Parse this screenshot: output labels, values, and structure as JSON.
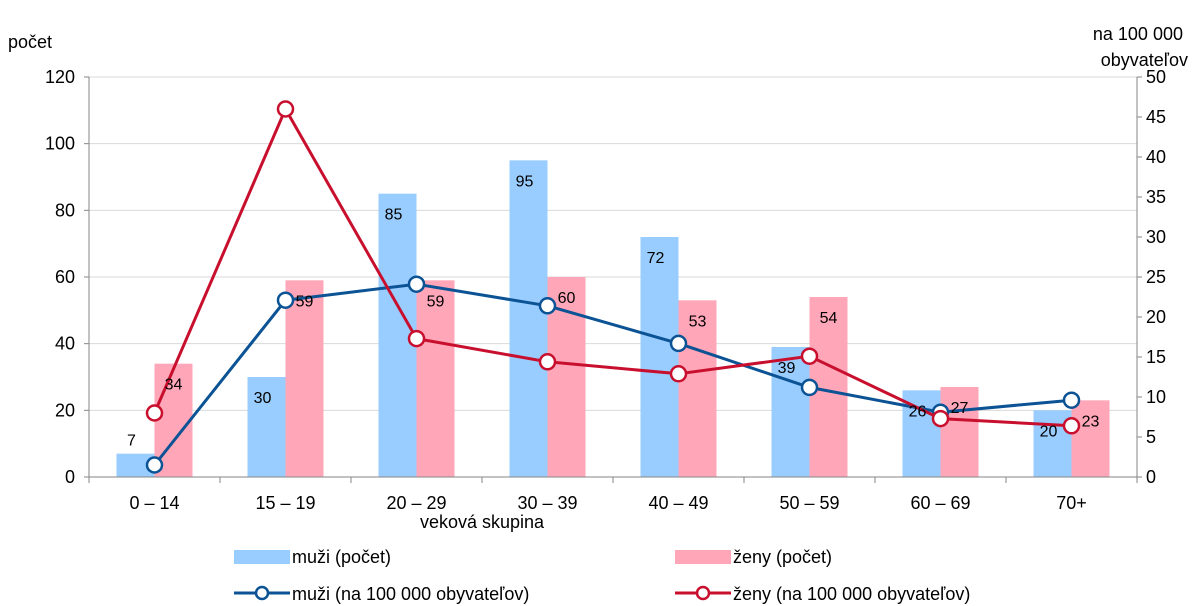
{
  "chart_data": {
    "type": "bar",
    "categories": [
      "0 – 14",
      "15 – 19",
      "20 – 29",
      "30 – 39",
      "40 – 49",
      "50 – 59",
      "60 – 69",
      "70+"
    ],
    "xlabel": "veková skupina",
    "ylabel_left": "počet",
    "ylabel_right": "na 100 000 obyvateľov",
    "ylabel_right_lines": [
      "na 100 000",
      "obyvateľov"
    ],
    "ylim_left": [
      0,
      120
    ],
    "yticks_left": [
      "0",
      "20",
      "40",
      "60",
      "80",
      "100",
      "120"
    ],
    "ylim_right": [
      0,
      50
    ],
    "yticks_right": [
      "0",
      "5",
      "10",
      "15",
      "20",
      "25",
      "30",
      "35",
      "40",
      "45",
      "50"
    ],
    "grid": true,
    "legend_position": "bottom",
    "series": [
      {
        "name": "muži (počet)",
        "type": "bar",
        "axis": "left",
        "color": "#99CCFF",
        "values": [
          7,
          30,
          85,
          95,
          72,
          39,
          26,
          20
        ],
        "labels": [
          "7",
          "30",
          "85",
          "95",
          "72",
          "39",
          "26",
          "20"
        ]
      },
      {
        "name": "ženy (počet)",
        "type": "bar",
        "axis": "left",
        "color": "#FFA6B8",
        "values": [
          34,
          59,
          59,
          60,
          53,
          54,
          27,
          23
        ],
        "labels": [
          "34",
          "59",
          "59",
          "60",
          "53",
          "54",
          "27",
          "23"
        ]
      },
      {
        "name": "muži (na 100 000 obyvateľov)",
        "type": "line",
        "axis": "right",
        "color": "#0B5394",
        "values": [
          1.5,
          22.1,
          24.1,
          21.4,
          16.7,
          11.2,
          8.1,
          9.6
        ]
      },
      {
        "name": "ženy (na 100 000 obyvateľov)",
        "type": "line",
        "axis": "right",
        "color": "#C8102E",
        "values": [
          8.0,
          46.0,
          17.3,
          14.4,
          12.9,
          15.1,
          7.3,
          6.4
        ]
      }
    ]
  }
}
